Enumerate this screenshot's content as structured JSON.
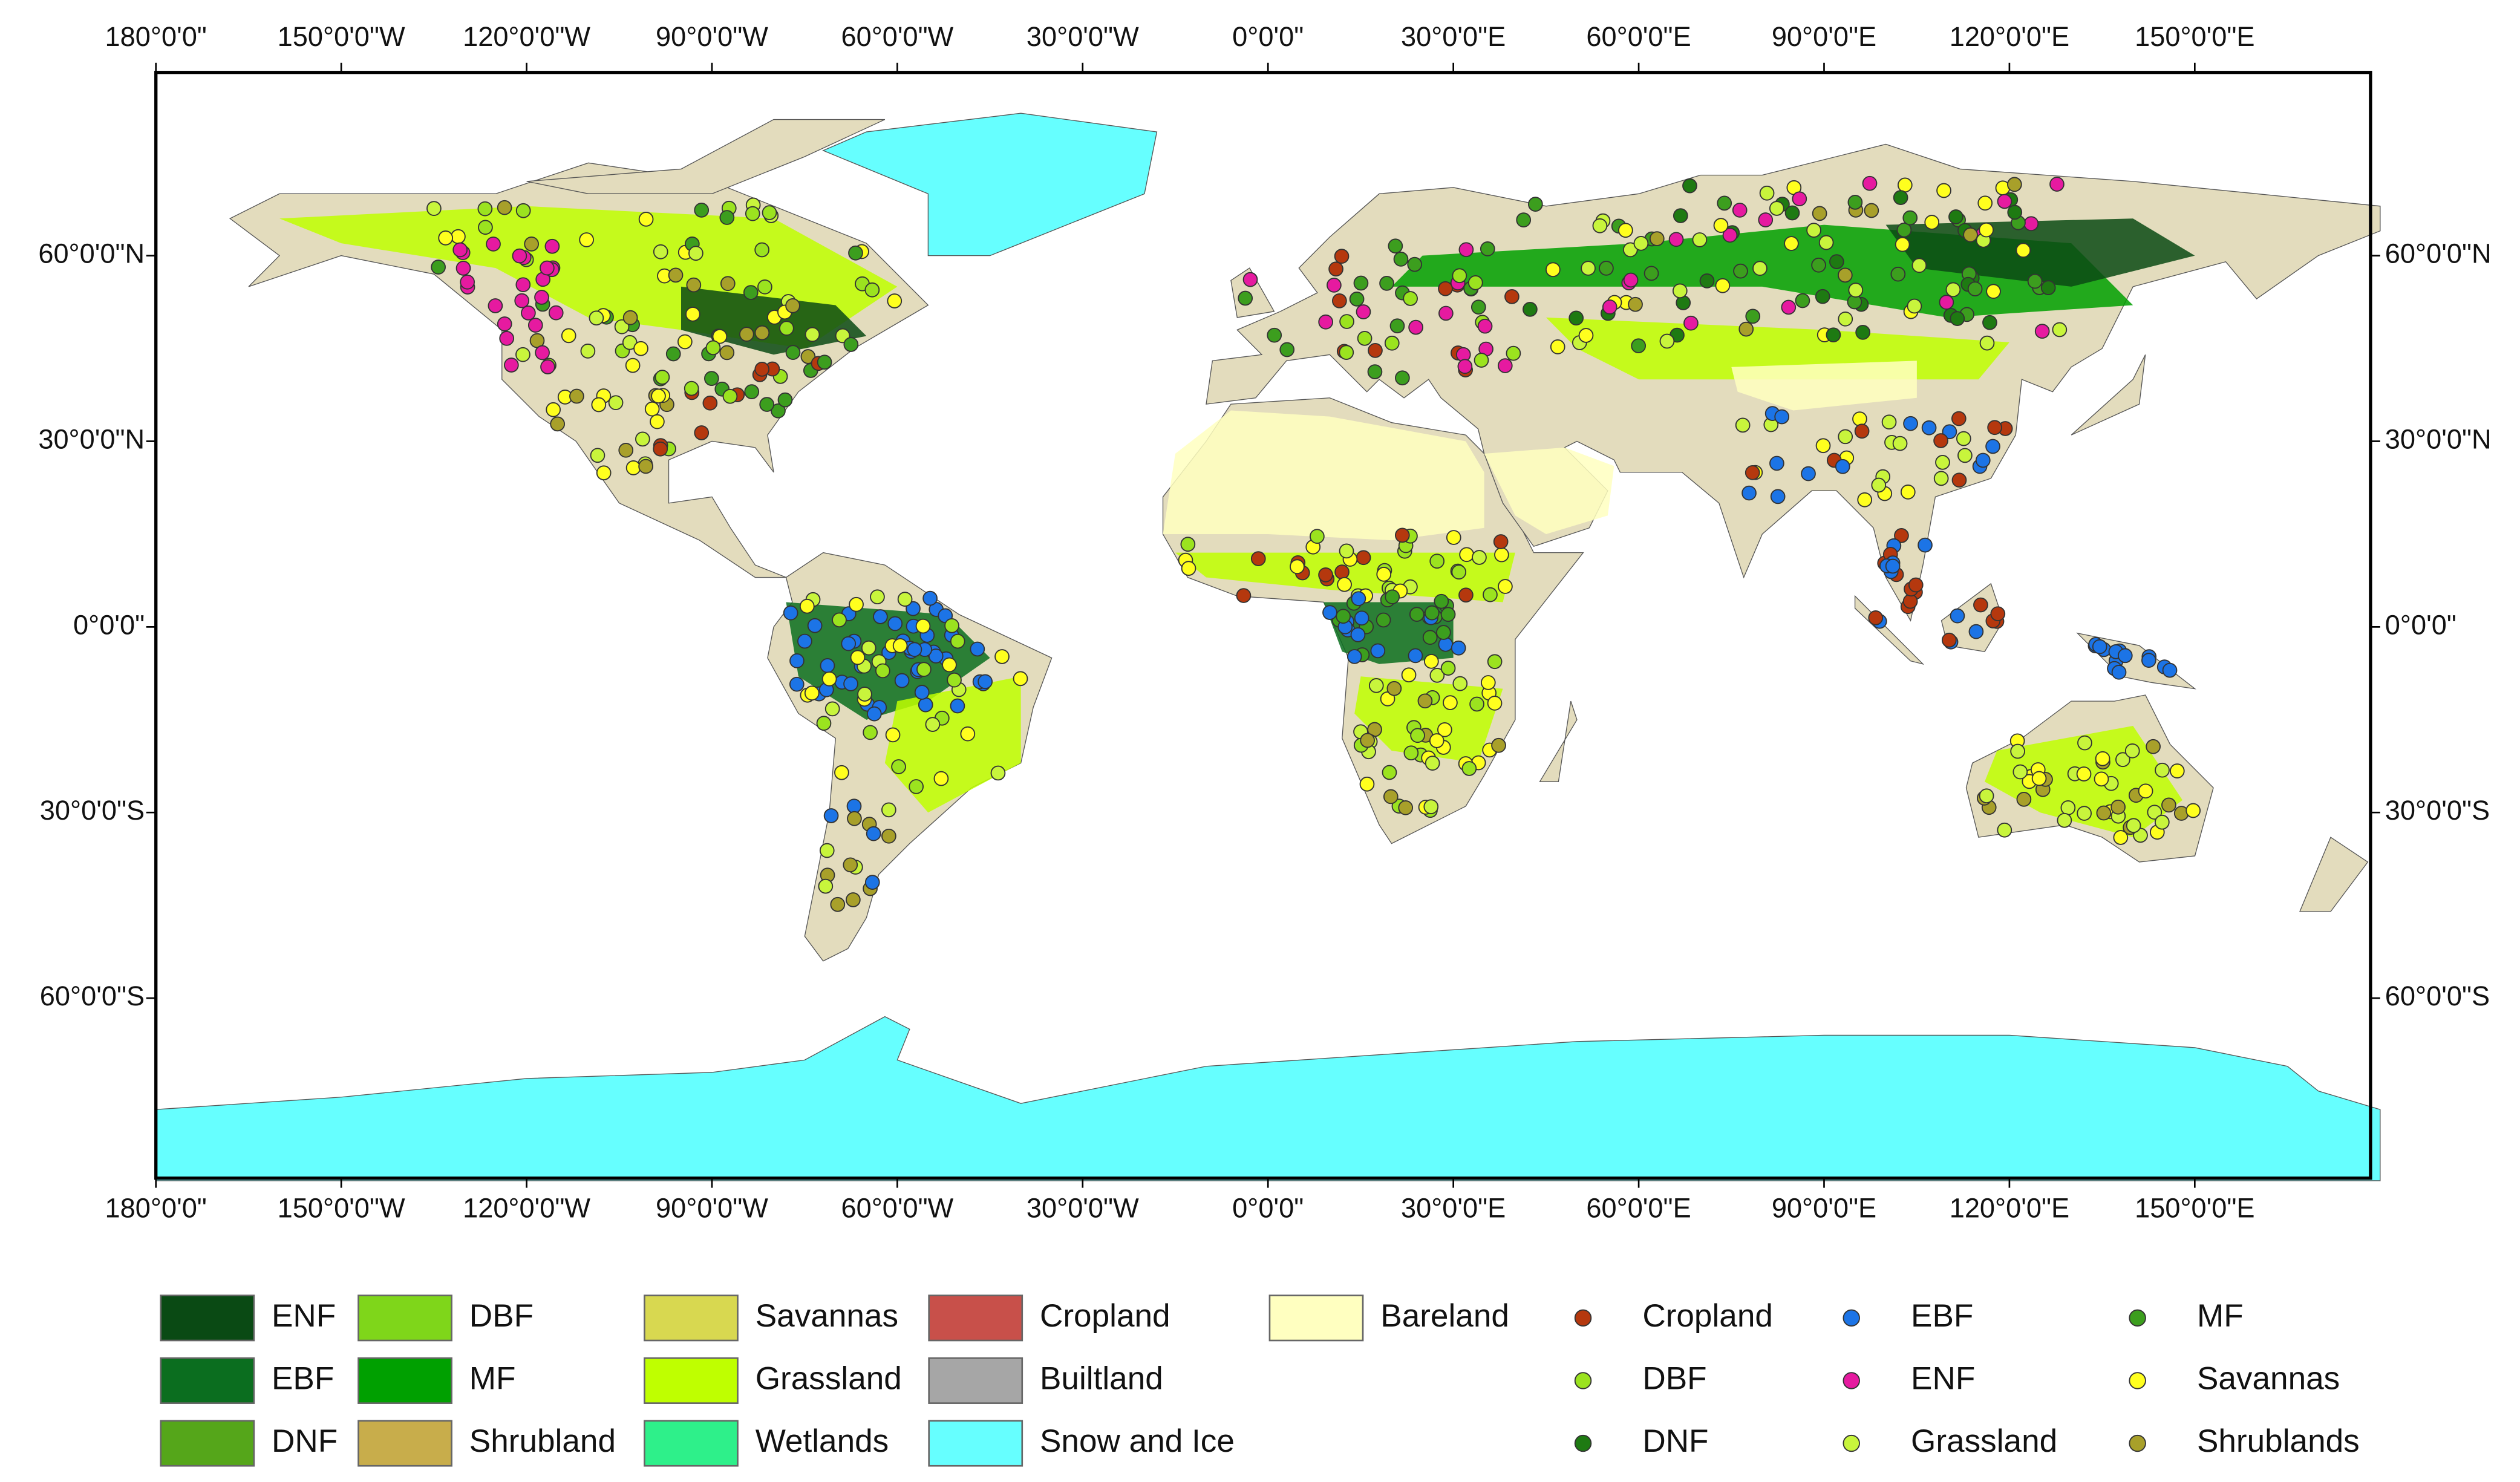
{
  "map": {
    "lon_ticks": [
      "180°0'0\"",
      "150°0'0\"W",
      "120°0'0\"W",
      "90°0'0\"W",
      "60°0'0\"W",
      "30°0'0\"W",
      "0°0'0\"",
      "30°0'0\"E",
      "60°0'0\"E",
      "90°0'0\"E",
      "120°0'0\"E",
      "150°0'0\"E"
    ],
    "lat_ticks": [
      "60°0'0\"N",
      "30°0'0\"N",
      "0°0'0\"",
      "30°0'0\"S",
      "60°0'0\"S"
    ],
    "land_cover_legend": [
      {
        "label": "ENF",
        "color": "#0a4a14"
      },
      {
        "label": "EBF",
        "color": "#0b6e1f"
      },
      {
        "label": "DNF",
        "color": "#55a61a"
      },
      {
        "label": "DBF",
        "color": "#7fd61a"
      },
      {
        "label": "MF",
        "color": "#00a000"
      },
      {
        "label": "Shrubland",
        "color": "#c8ad4b"
      },
      {
        "label": "Savannas",
        "color": "#d8d850"
      },
      {
        "label": "Grassland",
        "color": "#bfff00"
      },
      {
        "label": "Wetlands",
        "color": "#2ef08a"
      },
      {
        "label": "Cropland",
        "color": "#c8504a"
      },
      {
        "label": "Builtland",
        "color": "#a6a6a6"
      },
      {
        "label": "Snow and Ice",
        "color": "#66ffff"
      },
      {
        "label": "Bareland",
        "color": "#ffffc0"
      }
    ],
    "site_legend": [
      {
        "label": "Cropland",
        "color": "#b5380e"
      },
      {
        "label": "DBF",
        "color": "#9be31f"
      },
      {
        "label": "DNF",
        "color": "#1e7a12"
      },
      {
        "label": "EBF",
        "color": "#1c74e6"
      },
      {
        "label": "ENF",
        "color": "#e61aa0"
      },
      {
        "label": "Grassland",
        "color": "#c8f53c"
      },
      {
        "label": "MF",
        "color": "#3c9e1e"
      },
      {
        "label": "Savannas",
        "color": "#ffff1e"
      },
      {
        "label": "Shrublands",
        "color": "#a8a02a"
      }
    ]
  }
}
